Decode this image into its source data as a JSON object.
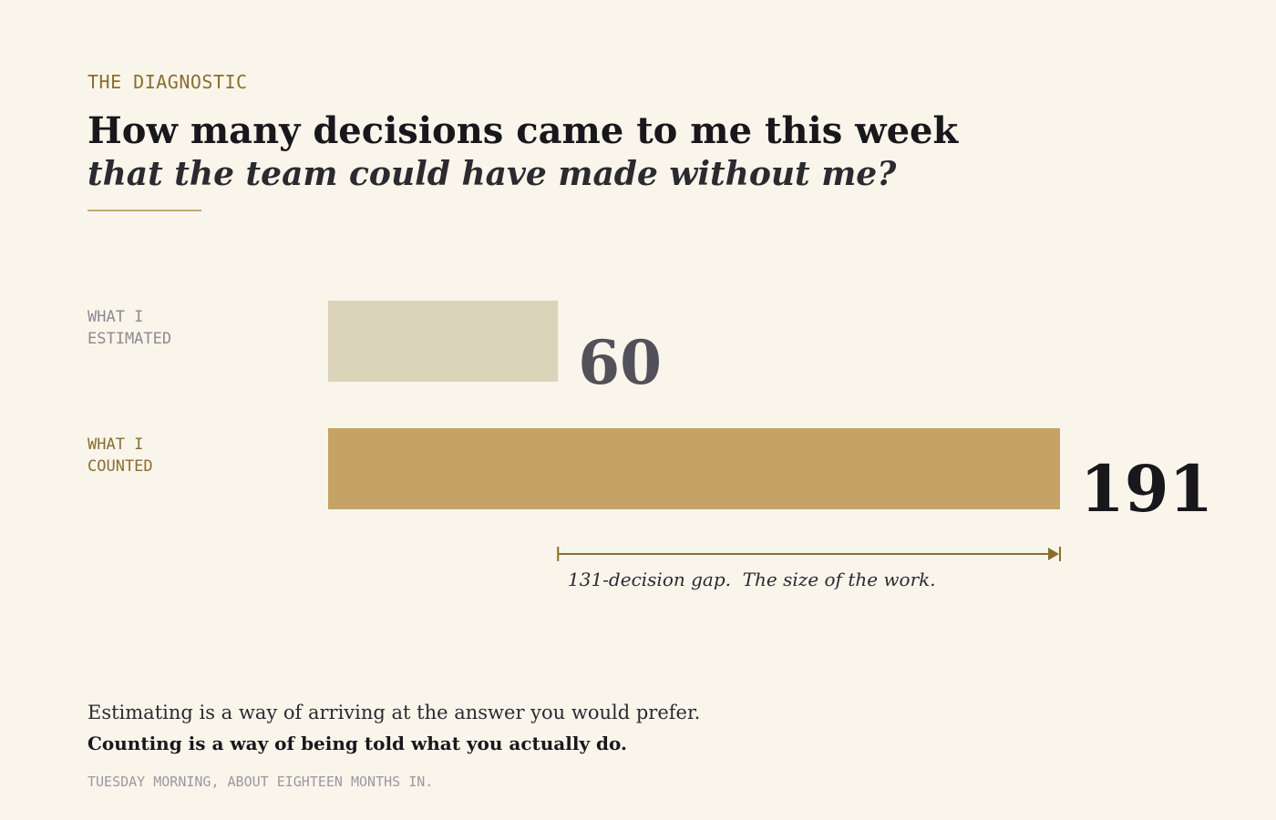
{
  "header": {
    "eyebrow": "THE DIAGNOSTIC",
    "title": "How many decisions came to me this week",
    "subtitle": "that the team could have made without me?"
  },
  "chart_data": {
    "type": "bar",
    "orientation": "horizontal",
    "categories": [
      "WHAT I ESTIMATED",
      "WHAT I COUNTED"
    ],
    "values": [
      60,
      191
    ],
    "xlim": [
      0,
      191
    ],
    "grid": false,
    "colors": [
      "#dcd3bb",
      "#c5a265"
    ],
    "value_colors": [
      "#52515a",
      "#17171c"
    ],
    "label_colors": [
      "#8c8a90",
      "#8a6e2f"
    ],
    "gap": {
      "value": 131,
      "from": 60,
      "to": 191,
      "color": "#8a6e2f"
    }
  },
  "labels": {
    "estimated_line1": "WHAT I",
    "estimated_line2": "ESTIMATED",
    "counted_line1": "WHAT I",
    "counted_line2": "COUNTED",
    "estimated_value": "60",
    "counted_value": "191",
    "gap_note": "131-decision gap.  The size of the work."
  },
  "closing": {
    "line1": "Estimating is a way of arriving at the answer you would prefer.",
    "line2": "Counting is a way of being told what you actually do.",
    "footnote": "TUESDAY MORNING, ABOUT EIGHTEEN MONTHS IN."
  }
}
